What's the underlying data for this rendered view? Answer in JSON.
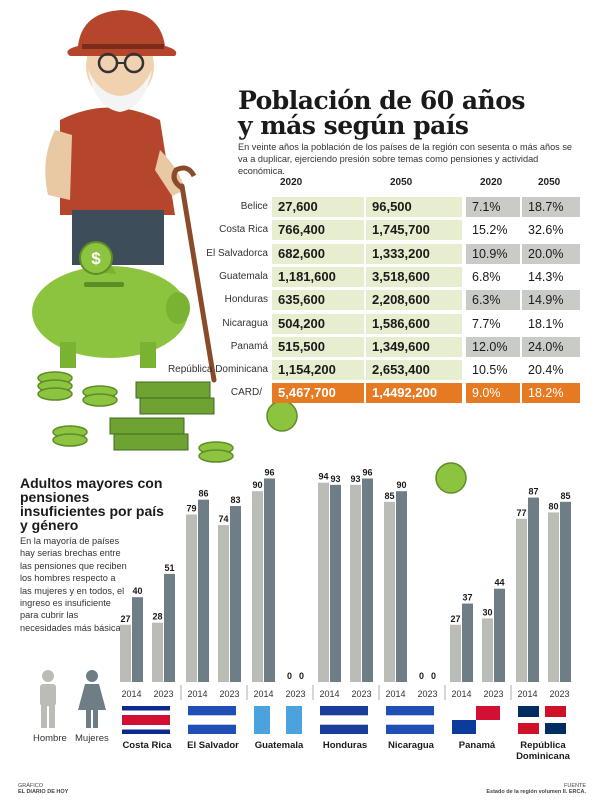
{
  "header": {
    "title_line1": "Población de 60 años",
    "title_line2": "y más según país",
    "subtitle": "En veinte años la población de los países de la región con sesenta o más años se va a duplicar, ejerciendo presión sobre temas como pensiones y actividad económica."
  },
  "table": {
    "col_2020": "2020",
    "col_2050": "2050",
    "pct_2020": "2020",
    "pct_2050": "2050",
    "rows": [
      {
        "name": "Belice",
        "p2020": "27,600",
        "p2050": "96,500",
        "pct2020": "7.1%",
        "pct2050": "18.7%"
      },
      {
        "name": "Costa Rica",
        "p2020": "766,400",
        "p2050": "1,745,700",
        "pct2020": "15.2%",
        "pct2050": "32.6%"
      },
      {
        "name": "El Salvadorca",
        "p2020": "682,600",
        "p2050": "1,333,200",
        "pct2020": "10.9%",
        "pct2050": "20.0%"
      },
      {
        "name": "Guatemala",
        "p2020": "1,181,600",
        "p2050": "3,518,600",
        "pct2020": "6.8%",
        "pct2050": "14.3%"
      },
      {
        "name": "Honduras",
        "p2020": "635,600",
        "p2050": "2,208,600",
        "pct2020": "6.3%",
        "pct2050": "14.9%"
      },
      {
        "name": "Nicaragua",
        "p2020": "504,200",
        "p2050": "1,586,600",
        "pct2020": "7.7%",
        "pct2050": "18.1%"
      },
      {
        "name": "Panamá",
        "p2020": "515,500",
        "p2050": "1,349,600",
        "pct2020": "12.0%",
        "pct2050": "24.0%"
      },
      {
        "name": "República Dominicana",
        "p2020": "1,154,200",
        "p2050": "2,653,400",
        "pct2020": "10.5%",
        "pct2050": "20.4%"
      }
    ],
    "total": {
      "name": "CARD/",
      "p2020": "5,467,700",
      "p2050": "1,4492,200",
      "pct2020": "9.0%",
      "pct2050": "18.2%"
    }
  },
  "section2": {
    "title": "Adultos mayores con pensiones insuficientes por país y género",
    "text": "En la mayoría de países hay serias brechas entre las pensiones que reciben los hombres respecto a las mujeres y en todos, el ingreso es insuficiente para cubrir las necesidades más básicas."
  },
  "legend": {
    "men": "Hombre",
    "women": "Mujeres",
    "men_color": "#b9bdb6",
    "women_color": "#6f7d86"
  },
  "chart_data": {
    "type": "bar",
    "title": "Adultos mayores con pensiones insuficientes por país y género",
    "years": [
      "2014",
      "2023"
    ],
    "countries": [
      {
        "name": "Costa Rica",
        "flag": "costa-rica",
        "values": {
          "2014": {
            "Hombre": 27,
            "Mujeres": 40
          },
          "2023": {
            "Hombre": 28,
            "Mujeres": 51
          }
        }
      },
      {
        "name": "El Salvador",
        "flag": "el-salvador",
        "values": {
          "2014": {
            "Hombre": 79,
            "Mujeres": 86
          },
          "2023": {
            "Hombre": 74,
            "Mujeres": 83
          }
        }
      },
      {
        "name": "Guatemala",
        "flag": "guatemala",
        "values": {
          "2014": {
            "Hombre": 90,
            "Mujeres": 96
          },
          "2023": {
            "Hombre": 0,
            "Mujeres": 0
          }
        }
      },
      {
        "name": "Honduras",
        "flag": "honduras",
        "values": {
          "2014": {
            "Hombre": 94,
            "Mujeres": 93
          },
          "2023": {
            "Hombre": 93,
            "Mujeres": 96
          }
        }
      },
      {
        "name": "Nicaragua",
        "flag": "nicaragua",
        "values": {
          "2014": {
            "Hombre": 85,
            "Mujeres": 90
          },
          "2023": {
            "Hombre": 0,
            "Mujeres": 0
          }
        }
      },
      {
        "name": "Panamá",
        "flag": "panama",
        "values": {
          "2014": {
            "Hombre": 27,
            "Mujeres": 37
          },
          "2023": {
            "Hombre": 30,
            "Mujeres": 44
          }
        }
      },
      {
        "name": "República Dominicana",
        "flag": "dominican-republic",
        "values": {
          "2014": {
            "Hombre": 77,
            "Mujeres": 87
          },
          "2023": {
            "Hombre": 80,
            "Mujeres": 85
          }
        }
      }
    ],
    "series": [
      "Hombre",
      "Mujeres"
    ],
    "ylim": [
      0,
      100
    ]
  },
  "footer": {
    "credit_line1": "GRÁFICO",
    "credit_line2": "EL DIARIO DE HOY",
    "source_line1": "FUENTE",
    "source_line2": "Estado de la región volumen II. ERCA."
  },
  "icons": [
    "elderly-man-icon",
    "piggy-bank-icon",
    "coin-icon",
    "cash-stack-icon",
    "man-silhouette-icon",
    "woman-silhouette-icon"
  ]
}
